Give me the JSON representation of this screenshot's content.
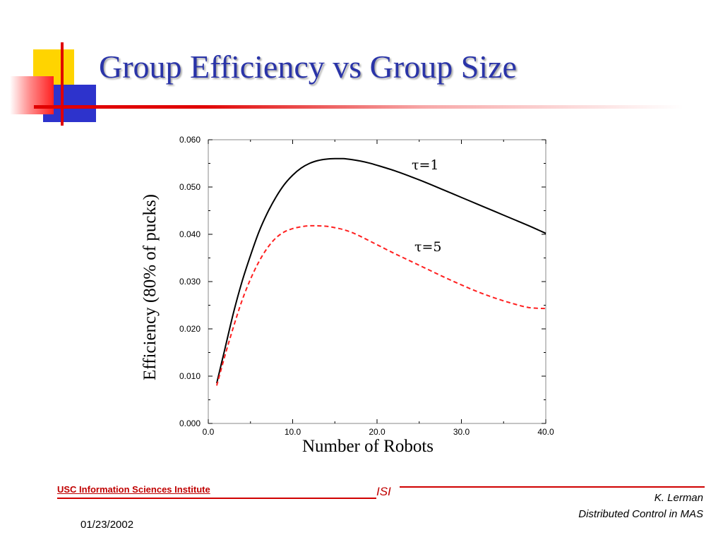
{
  "slide": {
    "title": "Group Efficiency vs Group Size"
  },
  "footer": {
    "organization": "USC Information Sciences Institute",
    "logo_text": "ISI",
    "author": "K. Lerman",
    "course": "Distributed Control in MAS",
    "date": "01/23/2002"
  },
  "colors": {
    "title": "#2a34a8",
    "accent_red": "#e00000",
    "accent_yellow": "#ffd400",
    "accent_blue": "#2d33cc",
    "series_tau1": "#000000",
    "series_tau5": "#ff2020"
  },
  "chart_data": {
    "type": "line",
    "title": "",
    "xlabel": "Number of Robots",
    "ylabel": "Efficiency (80% of pucks)",
    "xlim": [
      0,
      40
    ],
    "ylim": [
      0,
      0.06
    ],
    "grid": false,
    "xticks": [
      0,
      10,
      20,
      30,
      40
    ],
    "xtick_labels": [
      "0.0",
      "10.0",
      "20.0",
      "30.0",
      "40.0"
    ],
    "yticks": [
      0,
      0.01,
      0.02,
      0.03,
      0.04,
      0.05,
      0.06
    ],
    "ytick_labels": [
      "0.000",
      "0.010",
      "0.020",
      "0.030",
      "0.040",
      "0.050",
      "0.060"
    ],
    "annotations": [
      "τ=1",
      "τ=5"
    ],
    "series": [
      {
        "name": "τ=1",
        "style": "solid",
        "color": "#000000",
        "x": [
          1,
          2,
          3,
          4,
          5,
          6,
          7,
          8,
          9,
          10,
          11,
          12,
          13,
          14,
          15,
          16,
          17,
          18,
          19,
          20,
          22,
          24,
          26,
          28,
          30,
          32,
          34,
          36,
          38,
          40
        ],
        "y": [
          0.0085,
          0.016,
          0.0235,
          0.03,
          0.0355,
          0.0405,
          0.0445,
          0.0478,
          0.0505,
          0.0525,
          0.054,
          0.055,
          0.0556,
          0.0559,
          0.056,
          0.056,
          0.0558,
          0.0555,
          0.0551,
          0.0546,
          0.0535,
          0.0522,
          0.0508,
          0.0493,
          0.0478,
          0.0463,
          0.0448,
          0.0433,
          0.0418,
          0.0402
        ]
      },
      {
        "name": "τ=5",
        "style": "dashed",
        "color": "#ff2020",
        "x": [
          1,
          2,
          3,
          4,
          5,
          6,
          7,
          8,
          9,
          10,
          11,
          12,
          13,
          14,
          15,
          16,
          17,
          18,
          19,
          20,
          22,
          24,
          26,
          28,
          30,
          32,
          34,
          36,
          38,
          40
        ],
        "y": [
          0.008,
          0.0145,
          0.0205,
          0.026,
          0.0305,
          0.0342,
          0.0371,
          0.0392,
          0.0405,
          0.0412,
          0.0416,
          0.0418,
          0.0418,
          0.0417,
          0.0414,
          0.041,
          0.0404,
          0.0396,
          0.0387,
          0.0378,
          0.036,
          0.0343,
          0.0326,
          0.0309,
          0.0293,
          0.0278,
          0.0265,
          0.0254,
          0.0245,
          0.0243
        ]
      }
    ]
  }
}
